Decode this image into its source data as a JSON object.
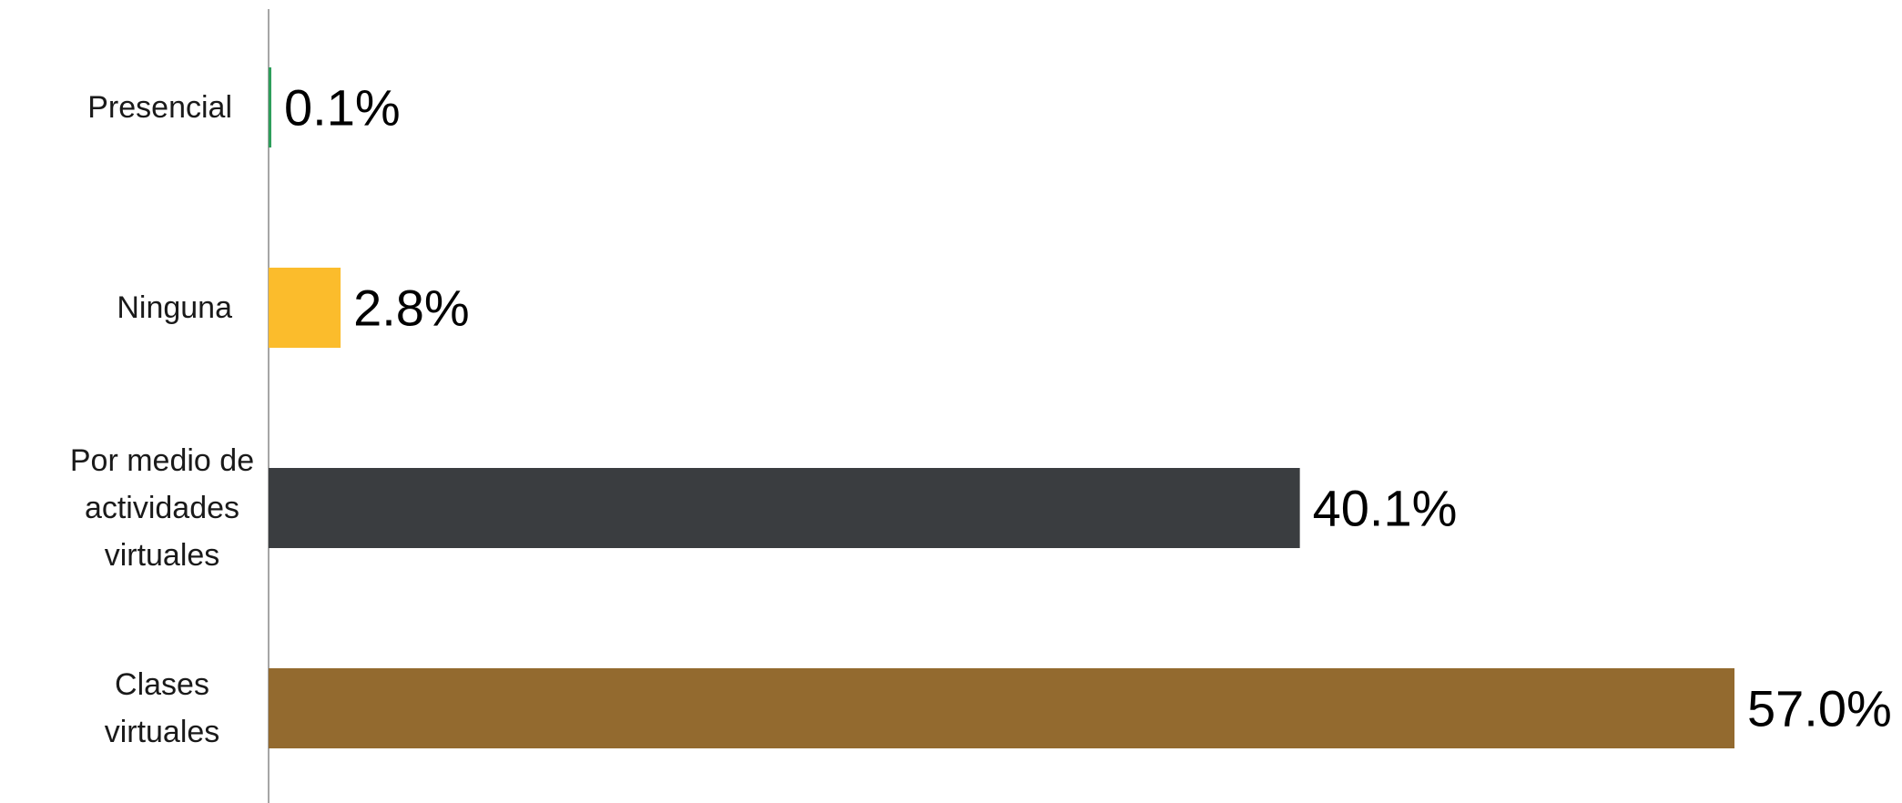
{
  "chart_data": {
    "type": "bar",
    "orientation": "horizontal",
    "categories": [
      "Presencial",
      "Ninguna",
      "Por medio de actividades virtuales",
      "Clases virtuales"
    ],
    "category_label_lines": [
      [
        "Presencial"
      ],
      [
        "Ninguna"
      ],
      [
        "Por medio de",
        "actividades",
        "virtuales"
      ],
      [
        "Clases",
        "virtuales"
      ]
    ],
    "values": [
      0.1,
      2.8,
      40.1,
      57.0
    ],
    "data_labels": [
      "0.1%",
      "2.8%",
      "40.1%",
      "57.0%"
    ],
    "colors": [
      "#2e9e5b",
      "#fbbc2c",
      "#3a3d40",
      "#936a2f"
    ],
    "axis_color": "#a6a6a6",
    "xlim": [
      0,
      57.0
    ],
    "grid": false,
    "legend": "none"
  }
}
